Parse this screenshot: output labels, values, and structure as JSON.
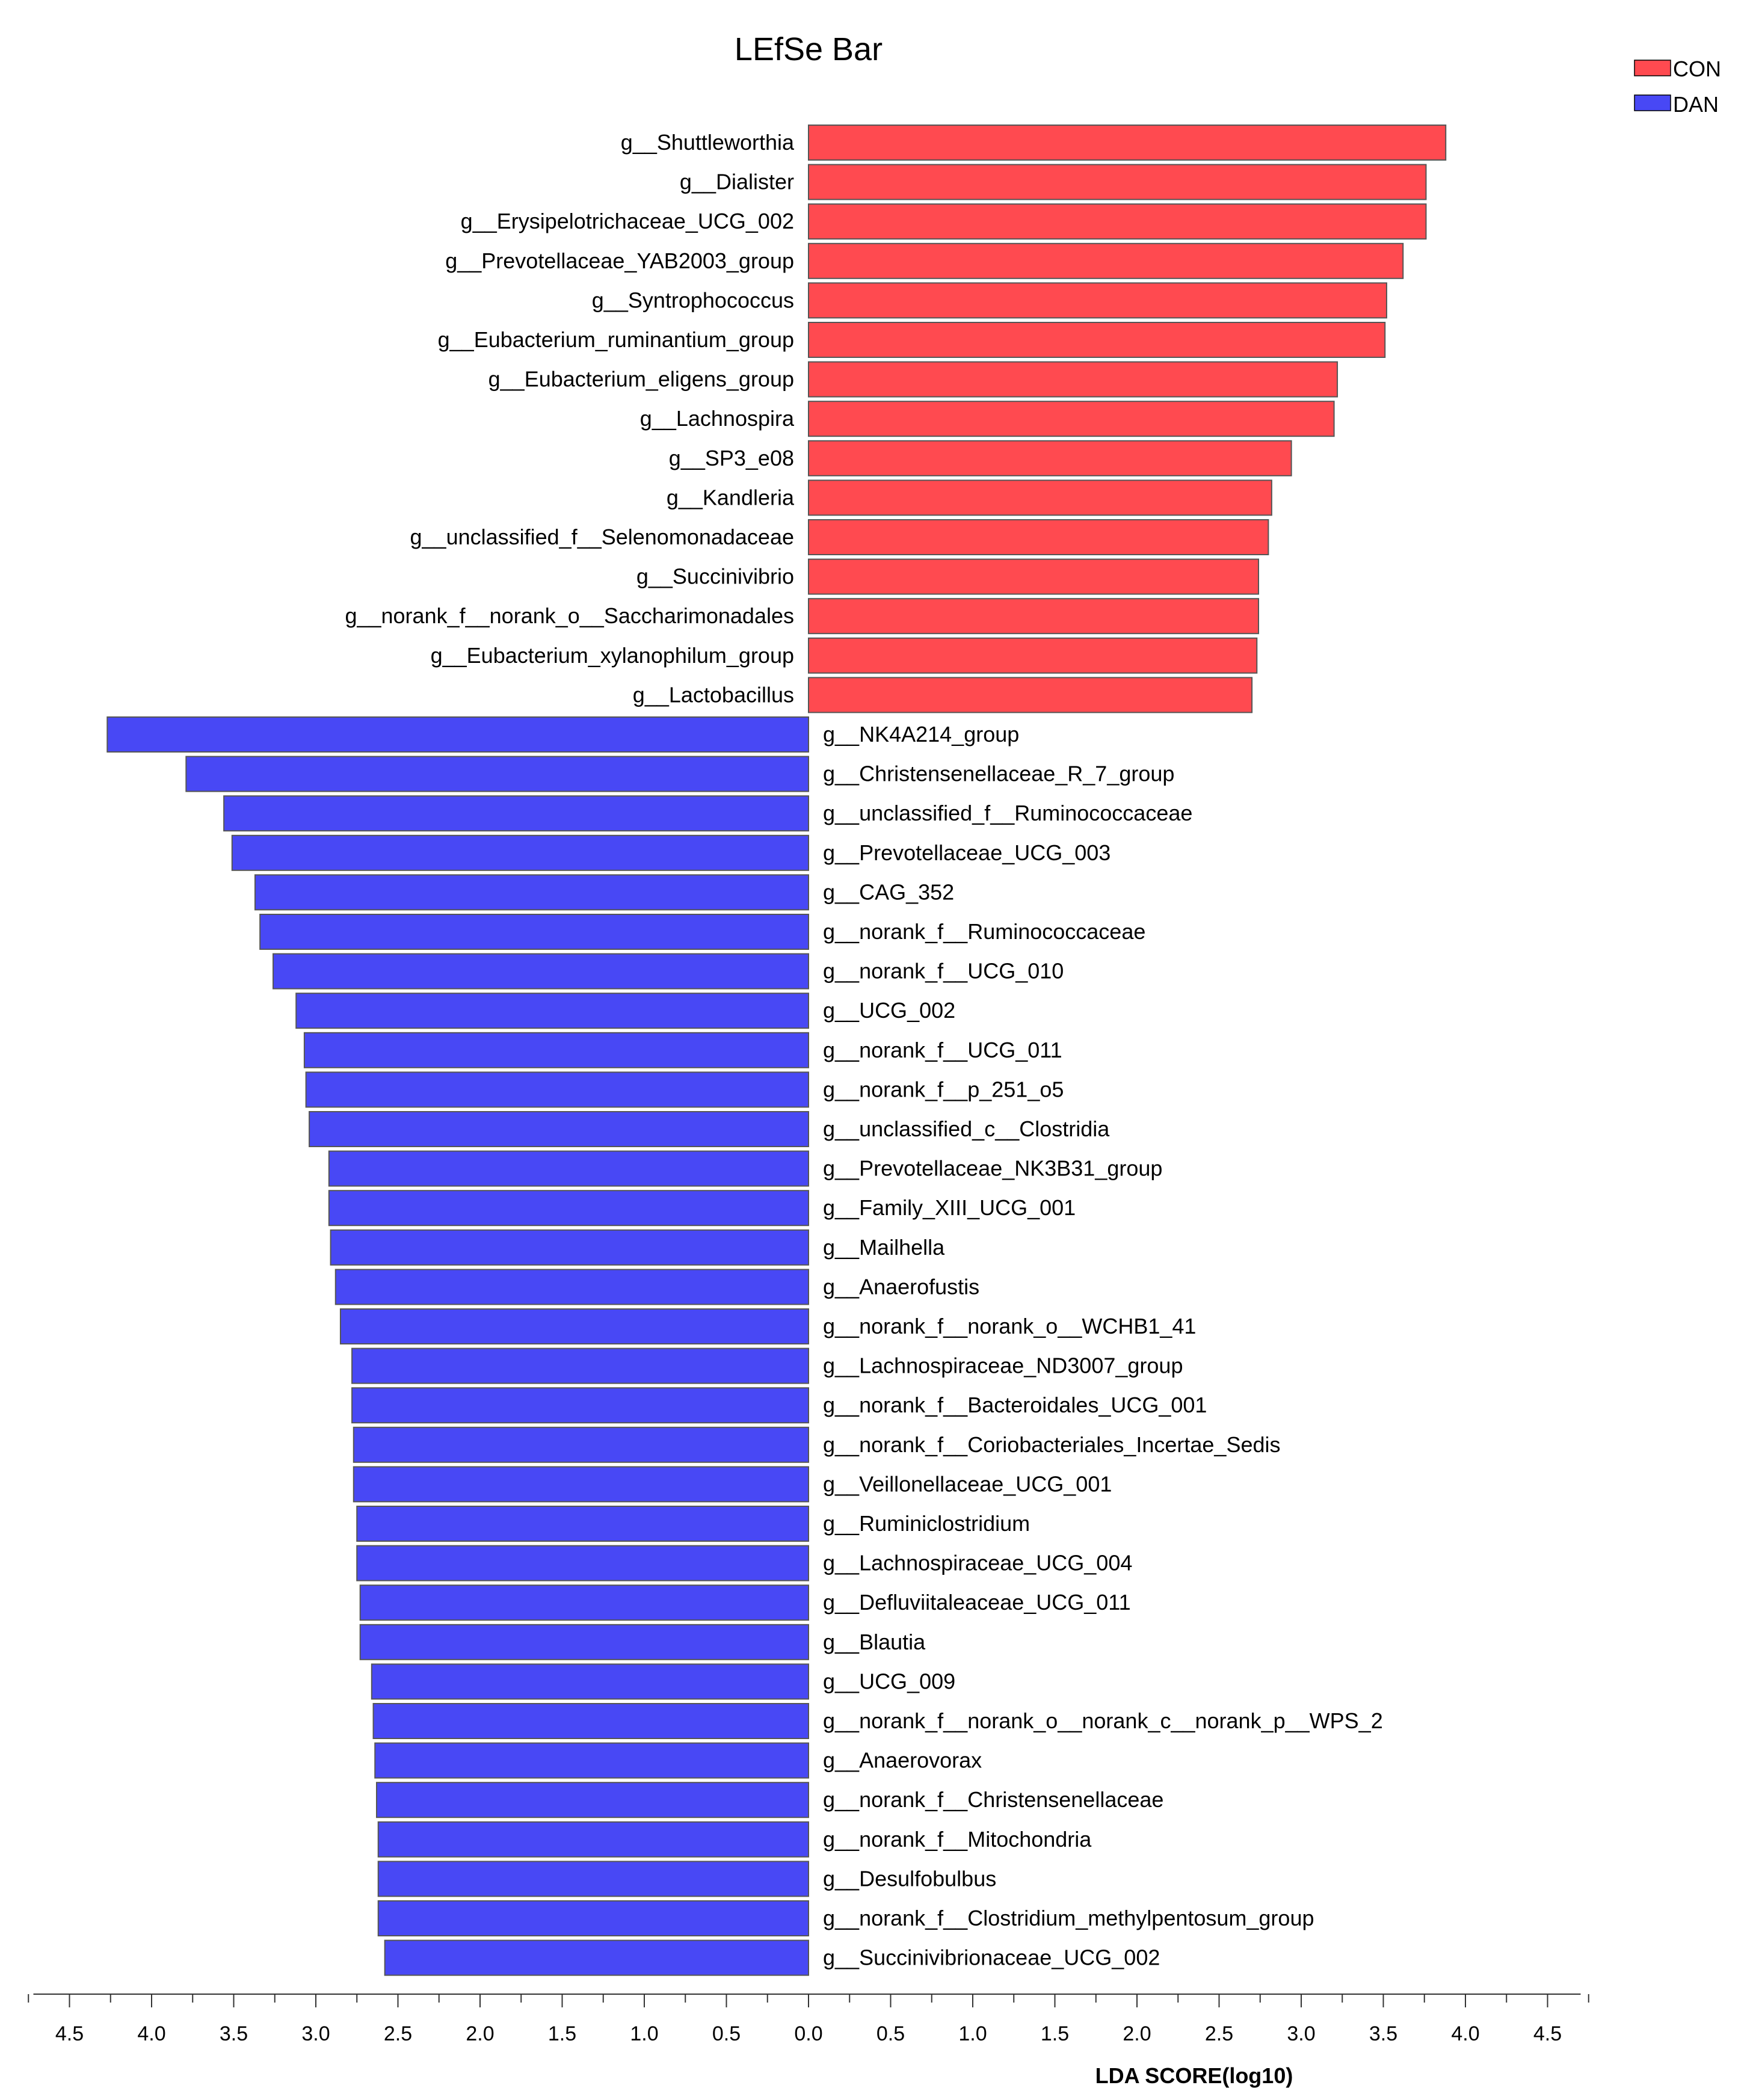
{
  "chart_data": {
    "type": "bar",
    "orientation": "horizontal-diverging",
    "title": "LEfSe Bar",
    "xlabel": "LDA SCORE(log10)",
    "ylabel": "",
    "xlim": [
      -4.5,
      4.5
    ],
    "tick_labels": [
      "4.5",
      "4.0",
      "3.5",
      "3.0",
      "2.5",
      "2.0",
      "1.5",
      "1.0",
      "0.5",
      "0.0",
      "0.5",
      "1.0",
      "1.5",
      "2.0",
      "2.5",
      "3.0",
      "3.5",
      "4.0",
      "4.5"
    ],
    "legend": {
      "position": "top-right",
      "entries": [
        {
          "name": "CON",
          "color": "#ff4a50"
        },
        {
          "name": "DAN",
          "color": "#4848f5"
        }
      ]
    },
    "series": [
      {
        "name": "CON",
        "color": "#ff4a50",
        "categories": [
          "g__Shuttleworthia",
          "g__Dialister",
          "g__Erysipelotrichaceae_UCG_002",
          "g__Prevotellaceae_YAB2003_group",
          "g__Syntrophococcus",
          "g__Eubacterium_ruminantium_group",
          "g__Eubacterium_eligens_group",
          "g__Lachnospira",
          "g__SP3_e08",
          "g__Kandleria",
          "g__unclassified_f__Selenomonadaceae",
          "g__Succinivibrio",
          "g__norank_f__norank_o__Saccharimonadales",
          "g__Eubacterium_xylanophilum_group",
          "g__Lactobacillus"
        ],
        "values": [
          3.88,
          3.76,
          3.76,
          3.62,
          3.52,
          3.51,
          3.22,
          3.2,
          2.94,
          2.82,
          2.8,
          2.74,
          2.74,
          2.73,
          2.7
        ]
      },
      {
        "name": "DAN",
        "color": "#4848f5",
        "categories": [
          "g__NK4A214_group",
          "g__Christensenellaceae_R_7_group",
          "g__unclassified_f__Ruminococcaceae",
          "g__Prevotellaceae_UCG_003",
          "g__CAG_352",
          "g__norank_f__Ruminococcaceae",
          "g__norank_f__UCG_010",
          "g__UCG_002",
          "g__norank_f__UCG_011",
          "g__norank_f__p_251_o5",
          "g__unclassified_c__Clostridia",
          "g__Prevotellaceae_NK3B31_group",
          "g__Family_XIII_UCG_001",
          "g__Mailhella",
          "g__Anaerofustis",
          "g__norank_f__norank_o__WCHB1_41",
          "g__Lachnospiraceae_ND3007_group",
          "g__norank_f__Bacteroidales_UCG_001",
          "g__norank_f__Coriobacteriales_Incertae_Sedis",
          "g__Veillonellaceae_UCG_001",
          "g__Ruminiclostridium",
          "g__Lachnospiraceae_UCG_004",
          "g__Defluviitaleaceae_UCG_011",
          "g__Blautia",
          "g__UCG_009",
          "g__norank_f__norank_o__norank_c__norank_p__WPS_2",
          "g__Anaerovorax",
          "g__norank_f__Christensenellaceae",
          "g__norank_f__Mitochondria",
          "g__Desulfobulbus",
          "g__norank_f__Clostridium_methylpentosum_group",
          "g__Succinivibrionaceae_UCG_002"
        ],
        "values": [
          4.27,
          3.79,
          3.56,
          3.51,
          3.37,
          3.34,
          3.26,
          3.12,
          3.07,
          3.06,
          3.04,
          2.92,
          2.92,
          2.91,
          2.88,
          2.85,
          2.78,
          2.78,
          2.77,
          2.77,
          2.75,
          2.75,
          2.73,
          2.73,
          2.66,
          2.65,
          2.64,
          2.63,
          2.62,
          2.62,
          2.62,
          2.58
        ]
      }
    ]
  }
}
